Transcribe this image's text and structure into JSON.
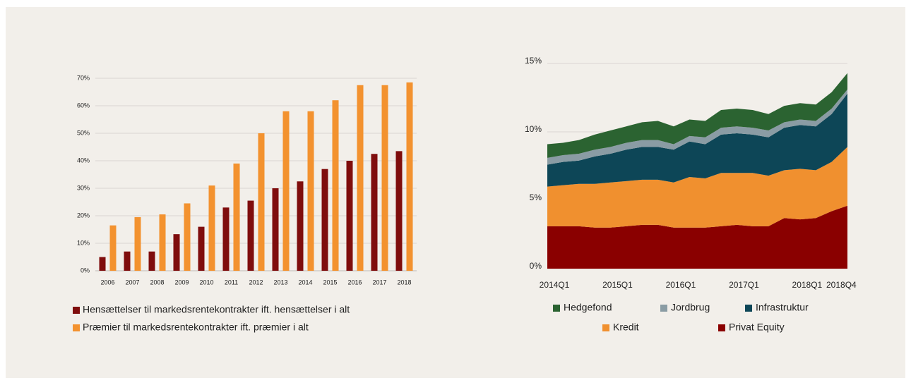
{
  "chart_data": [
    {
      "type": "bar",
      "categories": [
        "2006",
        "2007",
        "2008",
        "2009",
        "2010",
        "2011",
        "2012",
        "2013",
        "2014",
        "2015",
        "2016",
        "2017",
        "2018"
      ],
      "series": [
        {
          "name": "Hensættelser til markedsrentekontrakter ift. hensættelser i alt",
          "color": "#7f0d0d",
          "values": [
            5,
            7,
            7,
            13.3,
            16,
            23,
            25.5,
            30,
            32.5,
            37,
            40,
            42.5,
            43.5
          ]
        },
        {
          "name": "Præmier til markedsrentekontrakter ift. præmier i alt",
          "color": "#f3922f",
          "values": [
            16.5,
            19.5,
            20.5,
            24.5,
            31,
            39,
            50,
            58,
            58,
            62,
            67.5,
            67.5,
            68.5
          ]
        }
      ],
      "ylim": [
        0,
        70
      ],
      "yticks": [
        {
          "value": 0,
          "label": "0%"
        },
        {
          "value": 10,
          "label": "10%"
        },
        {
          "value": 20,
          "label": "20%"
        },
        {
          "value": 30,
          "label": "30%"
        },
        {
          "value": 40,
          "label": "40%"
        },
        {
          "value": 50,
          "label": "50%"
        },
        {
          "value": 60,
          "label": "60%"
        },
        {
          "value": 70,
          "label": "70%"
        }
      ],
      "grid": true
    },
    {
      "type": "area",
      "categories": [
        "2014Q1",
        null,
        null,
        null,
        "2015Q1",
        null,
        null,
        null,
        "2016Q1",
        null,
        null,
        null,
        "2017Q1",
        null,
        null,
        null,
        "2018Q1",
        null,
        null,
        "2018Q4"
      ],
      "series": [
        {
          "name": "Hedgefond",
          "color": "#2b6331",
          "values": [
            1.0,
            0.9,
            1.0,
            1.1,
            1.2,
            1.2,
            1.3,
            1.4,
            1.3,
            1.2,
            1.2,
            1.3,
            1.3,
            1.3,
            1.2,
            1.2,
            1.2,
            1.2,
            1.2,
            1.2
          ]
        },
        {
          "name": "Jordbrug",
          "color": "#8a9ca4",
          "values": [
            0.5,
            0.5,
            0.5,
            0.5,
            0.5,
            0.5,
            0.5,
            0.5,
            0.4,
            0.4,
            0.5,
            0.5,
            0.5,
            0.5,
            0.5,
            0.4,
            0.4,
            0.4,
            0.4,
            0.3
          ]
        },
        {
          "name": "Infrastruktur",
          "color": "#0d4657",
          "values": [
            1.6,
            1.7,
            1.7,
            2.0,
            2.1,
            2.3,
            2.4,
            2.4,
            2.4,
            2.6,
            2.5,
            2.8,
            2.9,
            2.8,
            2.8,
            3.1,
            3.2,
            3.2,
            3.5,
            3.9
          ]
        },
        {
          "name": "Kredit",
          "color": "#f0902f",
          "values": [
            2.9,
            3.0,
            3.1,
            3.2,
            3.3,
            3.3,
            3.3,
            3.3,
            3.3,
            3.7,
            3.6,
            3.9,
            3.8,
            3.9,
            3.7,
            3.5,
            3.7,
            3.5,
            3.6,
            4.3
          ]
        },
        {
          "name": "Privat Equity",
          "color": "#8a0000",
          "values": [
            3.1,
            3.1,
            3.1,
            3.0,
            3.0,
            3.1,
            3.2,
            3.2,
            3.0,
            3.0,
            3.0,
            3.1,
            3.2,
            3.1,
            3.1,
            3.7,
            3.6,
            3.7,
            4.2,
            4.6
          ]
        }
      ],
      "ylim": [
        0,
        15
      ],
      "yticks": [
        {
          "value": 0,
          "label": "0%"
        },
        {
          "value": 5,
          "label": "5%"
        },
        {
          "value": 10,
          "label": "10%"
        },
        {
          "value": 15,
          "label": "15%"
        }
      ],
      "grid": true
    }
  ]
}
